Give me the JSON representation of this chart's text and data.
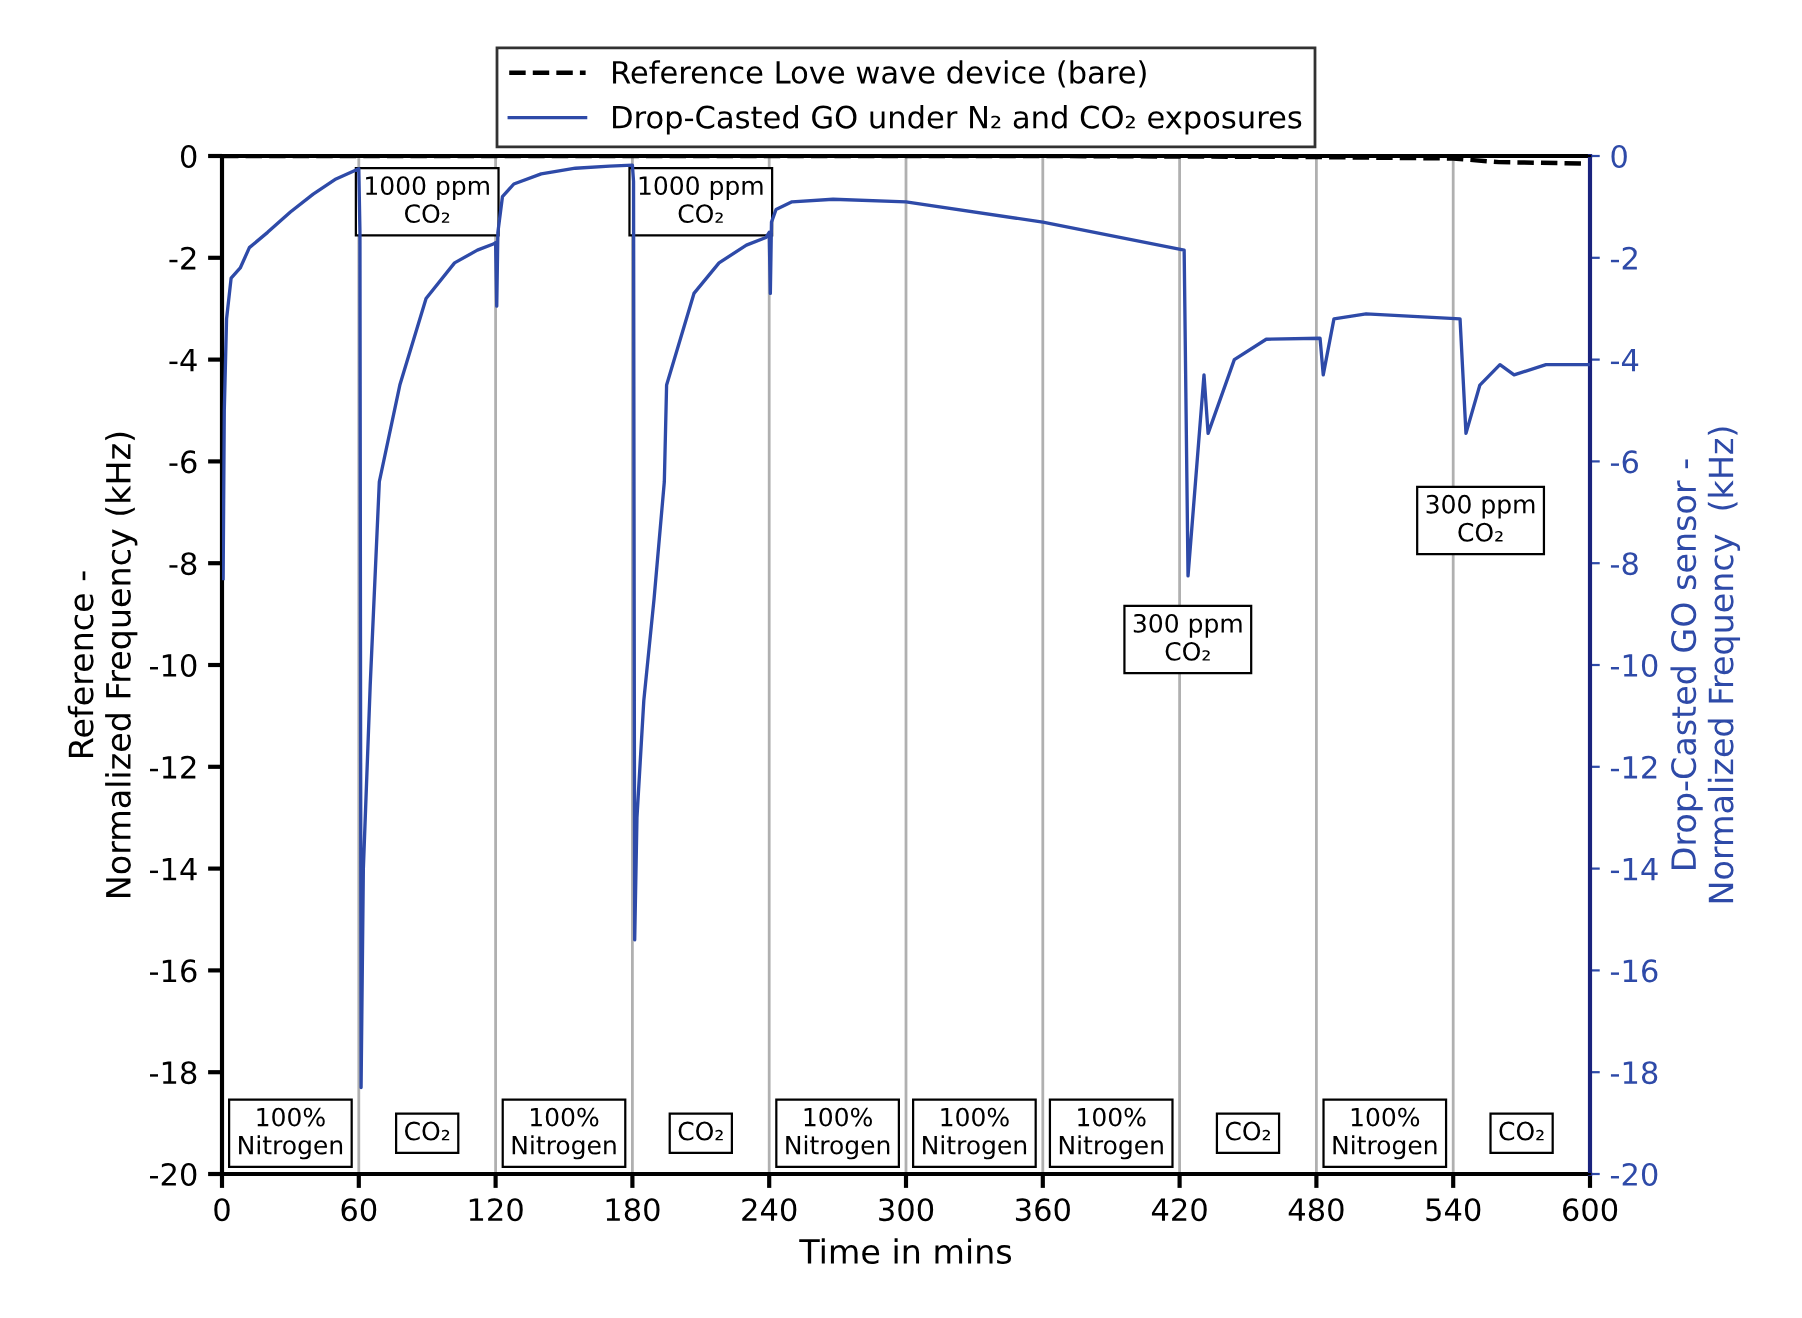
{
  "chart_data": {
    "type": "line",
    "xlabel": "Time in mins",
    "ylabel": "Reference -\nNormalized Frequency (kHz)",
    "y2label": "Drop-Casted GO sensor -\nNormalized Frequency  (kHz)",
    "xlim": [
      0,
      600
    ],
    "xticks": [
      0,
      60,
      120,
      180,
      240,
      300,
      360,
      420,
      480,
      540,
      600
    ],
    "ylim": [
      -20,
      0
    ],
    "yticks": [
      -20,
      -18,
      -16,
      -14,
      -12,
      -10,
      -8,
      -6,
      -4,
      -2,
      0
    ],
    "y2lim": [
      -20,
      0
    ],
    "y2ticks": [
      -20,
      -18,
      -16,
      -14,
      -12,
      -10,
      -8,
      -6,
      -4,
      -2,
      0
    ],
    "grid": "x",
    "legend": "top",
    "series": [
      {
        "name": "Reference Love wave device (bare)",
        "color": "#000000",
        "line_style": "dashed",
        "x": [
          0,
          180,
          360,
          480,
          540,
          560,
          600
        ],
        "values": [
          0,
          0,
          0,
          -0.02,
          -0.05,
          -0.12,
          -0.15
        ]
      },
      {
        "name": "Drop-Casted GO under N₂ and CO₂ exposures",
        "color": "#2e4aa8",
        "line_style": "solid",
        "axis": "y2",
        "x": [
          0.5,
          1,
          2,
          4,
          8,
          12,
          20,
          30,
          40,
          50,
          60,
          60.5,
          61,
          62,
          65,
          69,
          78,
          89.5,
          102,
          112,
          119,
          120,
          120.5,
          121,
          123,
          128,
          140,
          155,
          170,
          180,
          180.5,
          181,
          182,
          185,
          189.5,
          194,
          195,
          207,
          218,
          230,
          238.6,
          240,
          240.5,
          241,
          243,
          250,
          268,
          300,
          360,
          422,
          423.7,
          430.7,
          432.5,
          444,
          458,
          481.6,
          483,
          487.7,
          501.8,
          543,
          545.6,
          551.7,
          560.5,
          566.7,
          580.7,
          600
        ],
        "values": [
          -8.3,
          -5,
          -3.2,
          -2.4,
          -2.2,
          -1.8,
          -1.5,
          -1.1,
          -0.75,
          -0.45,
          -0.25,
          -1.5,
          -18.3,
          -14,
          -10.4,
          -6.4,
          -4.5,
          -2.8,
          -2.1,
          -1.85,
          -1.73,
          -1.7,
          -2.95,
          -1.5,
          -0.8,
          -0.55,
          -0.35,
          -0.24,
          -0.2,
          -0.18,
          -0.5,
          -15.4,
          -13,
          -10.7,
          -8.7,
          -6.4,
          -4.5,
          -2.7,
          -2.1,
          -1.75,
          -1.6,
          -1.5,
          -2.7,
          -1.3,
          -1.05,
          -0.9,
          -0.85,
          -0.9,
          -1.3,
          -1.85,
          -8.25,
          -4.3,
          -5.45,
          -4.0,
          -3.6,
          -3.58,
          -4.3,
          -3.2,
          -3.1,
          -3.2,
          -5.45,
          -4.5,
          -4.1,
          -4.3,
          -4.1,
          -4.1
        ]
      }
    ],
    "annotations": [
      "1000 ppm\nCO₂",
      "1000 ppm\nCO₂",
      "300 ppm\nCO₂",
      "300 ppm\nCO₂",
      "100%\nNitrogen",
      "CO₂",
      "100%\nNitrogen",
      "CO₂",
      "100%\nNitrogen",
      "100%\nNitrogen",
      "100%\nNitrogen",
      "CO₂",
      "100%\nNitrogen",
      "CO₂"
    ]
  }
}
